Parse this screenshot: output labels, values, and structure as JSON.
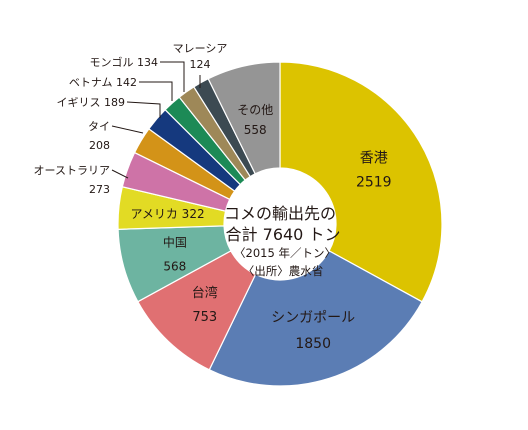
{
  "chart_data": {
    "type": "pie",
    "style": "donut",
    "center": {
      "title_line1": "コメの輸出先の",
      "title_line2": "合計 7640 トン",
      "unit_note": "〈2015 年／トン〉",
      "source": "〈出所〉農水省"
    },
    "slices": [
      {
        "label": "香港",
        "value": 2519,
        "value_text": "2519",
        "color": "#dcc300"
      },
      {
        "label": "シンガポール",
        "value": 1850,
        "value_text": "1850",
        "color": "#5b7db4"
      },
      {
        "label": "台湾",
        "value": 753,
        "value_text": "753",
        "color": "#e07072"
      },
      {
        "label": "中国",
        "value": 568,
        "value_text": "568",
        "color": "#6db4a1"
      },
      {
        "label": "アメリカ",
        "value": 322,
        "value_text": "322",
        "color": "#e2db24"
      },
      {
        "label": "オーストラリア",
        "value": 273,
        "value_text": "273",
        "color": "#ce73a7"
      },
      {
        "label": "タイ",
        "value": 208,
        "value_text": "208",
        "color": "#d39318"
      },
      {
        "label": "イギリス",
        "value": 189,
        "value_text": "189",
        "color": "#15397e"
      },
      {
        "label": "ベトナム",
        "value": 142,
        "value_text": "142",
        "color": "#1c8a56"
      },
      {
        "label": "モンゴル",
        "value": 134,
        "value_text": "134",
        "color": "#9e8858"
      },
      {
        "label": "マレーシア",
        "value": 124,
        "value_text": "124",
        "color": "#3c4a52"
      },
      {
        "label": "その他",
        "value": 558,
        "value_text": "558",
        "color": "#959595"
      }
    ]
  }
}
